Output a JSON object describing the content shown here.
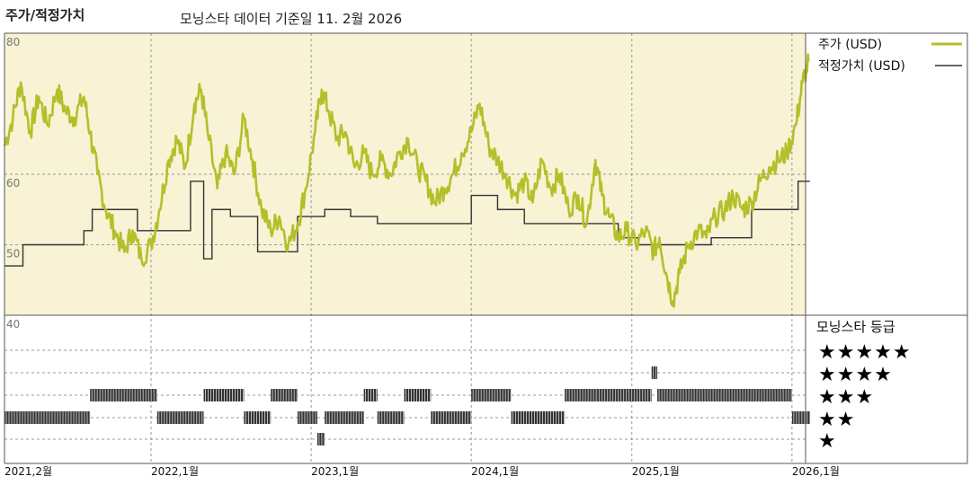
{
  "chart_data": {
    "type": "line",
    "title": "주가/적정가치",
    "subtitle": "모닝스타 데이터 기준일 11. 2월 2026",
    "y_ticks": [
      80,
      60,
      50,
      40
    ],
    "ylim": [
      40,
      80
    ],
    "x_range": [
      "2021-02",
      "2026-02"
    ],
    "x_ticks": [
      "2021,2월",
      "2022,1월",
      "2023,1월",
      "2024,1월",
      "2025,1월",
      "2026,1월"
    ],
    "colors": {
      "price": "#b5bf2a",
      "fair_value": "#333333",
      "panel_bg": "#f7f3d4",
      "grid": "#999999"
    },
    "legend": {
      "placement": "right",
      "items": [
        {
          "label": "주가 (USD)",
          "color": "#b5bf2a"
        },
        {
          "label": "적정가치 (USD)",
          "color": "#333333"
        }
      ]
    },
    "series": [
      {
        "name": "주가 (USD)",
        "points": [
          [
            "2021-02-01",
            64
          ],
          [
            "2021-02-20",
            68
          ],
          [
            "2021-03-10",
            73
          ],
          [
            "2021-04-01",
            66
          ],
          [
            "2021-04-20",
            71
          ],
          [
            "2021-05-10",
            67
          ],
          [
            "2021-06-01",
            72
          ],
          [
            "2021-06-20",
            69
          ],
          [
            "2021-07-10",
            68
          ],
          [
            "2021-08-01",
            71
          ],
          [
            "2021-08-15",
            66
          ],
          [
            "2021-09-01",
            60
          ],
          [
            "2021-09-20",
            55
          ],
          [
            "2021-10-10",
            52
          ],
          [
            "2021-11-01",
            49
          ],
          [
            "2021-11-20",
            52
          ],
          [
            "2021-12-10",
            48
          ],
          [
            "2022-01-01",
            50
          ],
          [
            "2022-01-20",
            55
          ],
          [
            "2022-02-10",
            62
          ],
          [
            "2022-03-01",
            65
          ],
          [
            "2022-03-20",
            61
          ],
          [
            "2022-04-10",
            70
          ],
          [
            "2022-04-25",
            72
          ],
          [
            "2022-05-10",
            66
          ],
          [
            "2022-06-01",
            58
          ],
          [
            "2022-06-20",
            63
          ],
          [
            "2022-07-10",
            60
          ],
          [
            "2022-08-01",
            68
          ],
          [
            "2022-08-20",
            62
          ],
          [
            "2022-09-10",
            55
          ],
          [
            "2022-10-01",
            52
          ],
          [
            "2022-10-20",
            54
          ],
          [
            "2022-11-10",
            50
          ],
          [
            "2022-12-01",
            53
          ],
          [
            "2022-12-20",
            58
          ],
          [
            "2023-01-10",
            66
          ],
          [
            "2023-01-25",
            72
          ],
          [
            "2023-02-10",
            69
          ],
          [
            "2023-03-01",
            65
          ],
          [
            "2023-03-20",
            66
          ],
          [
            "2023-04-10",
            61
          ],
          [
            "2023-05-01",
            63
          ],
          [
            "2023-05-20",
            60
          ],
          [
            "2023-06-10",
            62
          ],
          [
            "2023-07-01",
            60
          ],
          [
            "2023-07-20",
            63
          ],
          [
            "2023-08-10",
            65
          ],
          [
            "2023-09-01",
            61
          ],
          [
            "2023-09-20",
            59
          ],
          [
            "2023-10-10",
            56
          ],
          [
            "2023-11-01",
            58
          ],
          [
            "2023-11-20",
            60
          ],
          [
            "2023-12-10",
            63
          ],
          [
            "2024-01-01",
            66
          ],
          [
            "2024-01-20",
            70
          ],
          [
            "2024-02-10",
            64
          ],
          [
            "2024-03-01",
            62
          ],
          [
            "2024-03-20",
            60
          ],
          [
            "2024-04-10",
            57
          ],
          [
            "2024-05-01",
            59
          ],
          [
            "2024-05-20",
            56
          ],
          [
            "2024-06-10",
            62
          ],
          [
            "2024-07-01",
            58
          ],
          [
            "2024-07-20",
            60
          ],
          [
            "2024-08-10",
            55
          ],
          [
            "2024-09-01",
            57
          ],
          [
            "2024-09-20",
            53
          ],
          [
            "2024-10-10",
            62
          ],
          [
            "2024-10-25",
            57
          ],
          [
            "2024-11-10",
            54
          ],
          [
            "2024-12-01",
            51
          ],
          [
            "2024-12-20",
            52
          ],
          [
            "2025-01-10",
            50
          ],
          [
            "2025-02-01",
            52
          ],
          [
            "2025-02-20",
            49
          ],
          [
            "2025-03-05",
            51
          ],
          [
            "2025-03-20",
            46
          ],
          [
            "2025-04-05",
            42
          ],
          [
            "2025-04-20",
            46
          ],
          [
            "2025-05-10",
            50
          ],
          [
            "2025-06-01",
            52
          ],
          [
            "2025-06-20",
            51
          ],
          [
            "2025-07-10",
            54
          ],
          [
            "2025-08-01",
            55
          ],
          [
            "2025-08-20",
            57
          ],
          [
            "2025-09-10",
            55
          ],
          [
            "2025-10-01",
            56
          ],
          [
            "2025-10-20",
            59
          ],
          [
            "2025-11-10",
            61
          ],
          [
            "2025-12-01",
            62
          ],
          [
            "2025-12-20",
            63
          ],
          [
            "2026-01-10",
            67
          ],
          [
            "2026-01-25",
            73
          ],
          [
            "2026-02-08",
            76
          ]
        ]
      },
      {
        "name": "적정가치 (USD)",
        "steps": [
          [
            "2021-02-01",
            47
          ],
          [
            "2021-03-15",
            50
          ],
          [
            "2021-08-01",
            52
          ],
          [
            "2021-08-20",
            55
          ],
          [
            "2021-12-01",
            52
          ],
          [
            "2022-04-01",
            59
          ],
          [
            "2022-05-01",
            48
          ],
          [
            "2022-05-20",
            55
          ],
          [
            "2022-07-01",
            54
          ],
          [
            "2022-09-01",
            49
          ],
          [
            "2022-12-01",
            54
          ],
          [
            "2023-02-01",
            55
          ],
          [
            "2023-04-01",
            54
          ],
          [
            "2023-06-01",
            53
          ],
          [
            "2023-09-01",
            53
          ],
          [
            "2024-01-01",
            57
          ],
          [
            "2024-03-01",
            55
          ],
          [
            "2024-05-01",
            53
          ],
          [
            "2024-08-01",
            53
          ],
          [
            "2024-12-01",
            51
          ],
          [
            "2025-01-15",
            50
          ],
          [
            "2025-04-01",
            50
          ],
          [
            "2025-07-01",
            51
          ],
          [
            "2025-10-01",
            55
          ],
          [
            "2026-01-15",
            59
          ]
        ]
      }
    ],
    "ratings": {
      "title": "모닝스타 등급",
      "levels": [
        "★★★★★",
        "★★★★",
        "★★★",
        "★★",
        "★"
      ],
      "periods": [
        [
          "2021-02-01",
          "2021-08-15",
          2
        ],
        [
          "2021-08-15",
          "2022-01-15",
          3
        ],
        [
          "2022-01-15",
          "2022-05-01",
          2
        ],
        [
          "2022-05-01",
          "2022-08-01",
          3
        ],
        [
          "2022-08-01",
          "2022-10-01",
          2
        ],
        [
          "2022-10-01",
          "2022-12-01",
          3
        ],
        [
          "2022-12-01",
          "2023-01-15",
          2
        ],
        [
          "2023-01-15",
          "2023-02-01",
          1
        ],
        [
          "2023-02-01",
          "2023-05-01",
          2
        ],
        [
          "2023-05-01",
          "2023-06-01",
          3
        ],
        [
          "2023-06-01",
          "2023-08-01",
          2
        ],
        [
          "2023-08-01",
          "2023-10-01",
          3
        ],
        [
          "2023-10-01",
          "2024-01-01",
          2
        ],
        [
          "2024-01-01",
          "2024-04-01",
          3
        ],
        [
          "2024-04-01",
          "2024-08-01",
          2
        ],
        [
          "2024-08-01",
          "2024-10-15",
          3
        ],
        [
          "2024-10-15",
          "2025-02-15",
          3
        ],
        [
          "2025-02-15",
          "2025-02-28",
          4
        ],
        [
          "2025-02-28",
          "2026-01-01",
          3
        ],
        [
          "2026-01-01",
          "2026-02-11",
          2
        ]
      ]
    }
  }
}
